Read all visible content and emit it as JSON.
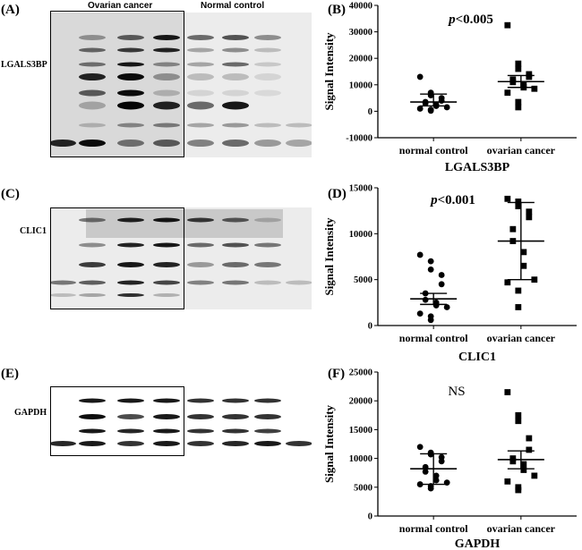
{
  "blots": [
    {
      "panel": "(A)",
      "protein": "LGALS3BP",
      "group_labels": [
        "Ovarian cancer",
        "Normal control"
      ]
    },
    {
      "panel": "(C)",
      "protein": "CLIC1",
      "group_labels": []
    },
    {
      "panel": "(E)",
      "protein": "GAPDH",
      "group_labels": []
    }
  ],
  "chart_data": [
    {
      "panel": "(B)",
      "type": "scatter",
      "title": "",
      "ylabel": "Signal Intensity",
      "xlabel": "LGALS3BP",
      "categories": [
        "normal control",
        "ovarian cancer"
      ],
      "ylim": [
        -10000,
        40000
      ],
      "yticks": [
        -10000,
        0,
        10000,
        20000,
        30000,
        40000
      ],
      "annotation": "p<0.005",
      "series": [
        {
          "category": "normal control",
          "marker": "circle",
          "values": [
            13000,
            7000,
            6000,
            5000,
            4000,
            3500,
            3000,
            2500,
            2000,
            1500,
            1000,
            600,
            200
          ],
          "mean": 3500,
          "error": [
            2000,
            6500
          ]
        },
        {
          "category": "ovarian cancer",
          "marker": "square",
          "values": [
            32500,
            18000,
            16000,
            14000,
            13000,
            12000,
            11000,
            10000,
            9000,
            8500,
            7000,
            3500,
            1500
          ],
          "mean": 11200,
          "error": [
            9000,
            13500
          ]
        }
      ]
    },
    {
      "panel": "(D)",
      "type": "scatter",
      "title": "",
      "ylabel": "Signal Intensity",
      "xlabel": "CLIC1",
      "categories": [
        "normal control",
        "ovarian cancer"
      ],
      "ylim": [
        0,
        15000
      ],
      "yticks": [
        0,
        5000,
        10000,
        15000
      ],
      "annotation": "p<0.001",
      "series": [
        {
          "category": "normal control",
          "marker": "circle",
          "values": [
            7700,
            7000,
            6100,
            5500,
            4500,
            3500,
            2800,
            2500,
            2200,
            2000,
            1300,
            1000,
            600
          ],
          "mean": 2900,
          "error": [
            2300,
            3500
          ]
        },
        {
          "category": "ovarian cancer",
          "marker": "square",
          "values": [
            13800,
            13500,
            13000,
            12400,
            11800,
            10500,
            9200,
            8000,
            6500,
            5000,
            4700,
            3800,
            2000
          ],
          "mean": 9200,
          "error": [
            5000,
            13400
          ]
        }
      ]
    },
    {
      "panel": "(F)",
      "type": "scatter",
      "title": "",
      "ylabel": "Signal Intensity",
      "xlabel": "GAPDH",
      "categories": [
        "normal control",
        "ovarian cancer"
      ],
      "ylim": [
        0,
        25000
      ],
      "yticks": [
        0,
        5000,
        10000,
        15000,
        20000,
        25000
      ],
      "annotation": "NS",
      "series": [
        {
          "category": "normal control",
          "marker": "circle",
          "values": [
            12000,
            11000,
            10700,
            10200,
            9500,
            8500,
            7700,
            7000,
            6200,
            5800,
            5500,
            5200,
            4800
          ],
          "mean": 8200,
          "error": [
            5500,
            10800
          ]
        },
        {
          "category": "ovarian cancer",
          "marker": "square",
          "values": [
            21500,
            17500,
            16500,
            13500,
            11500,
            10000,
            9500,
            9000,
            8000,
            7000,
            6000,
            5000,
            4500
          ],
          "mean": 9800,
          "error": [
            8200,
            11300
          ]
        }
      ]
    }
  ]
}
